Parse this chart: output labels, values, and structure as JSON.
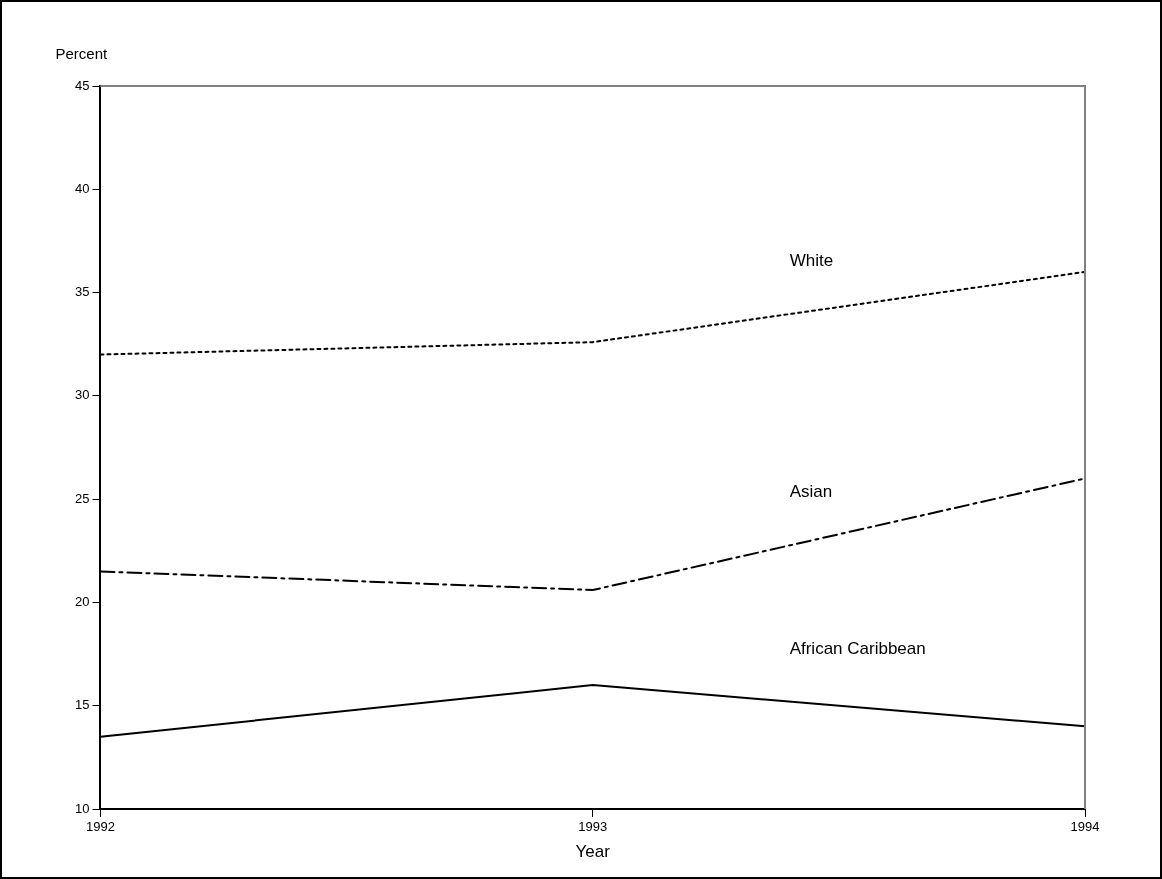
{
  "chart_data": {
    "type": "line",
    "xlabel": "Year",
    "ylabel": "Percent",
    "categories": [
      "1992",
      "1993",
      "1994"
    ],
    "series": [
      {
        "name": "White",
        "color": "#000000",
        "line_style": "dotted",
        "values": [
          32,
          32.6,
          36
        ]
      },
      {
        "name": "Asian",
        "color": "#000000",
        "line_style": "dashdot",
        "values": [
          21.5,
          20.6,
          26
        ]
      },
      {
        "name": "African Caribbean",
        "color": "#000000",
        "line_style": "solid",
        "values": [
          13.5,
          16,
          14
        ]
      }
    ],
    "ylim": [
      10,
      45
    ],
    "yticks": [
      10,
      15,
      20,
      25,
      30,
      35,
      40,
      45
    ],
    "grid": false,
    "legend": false,
    "marker": "none"
  }
}
